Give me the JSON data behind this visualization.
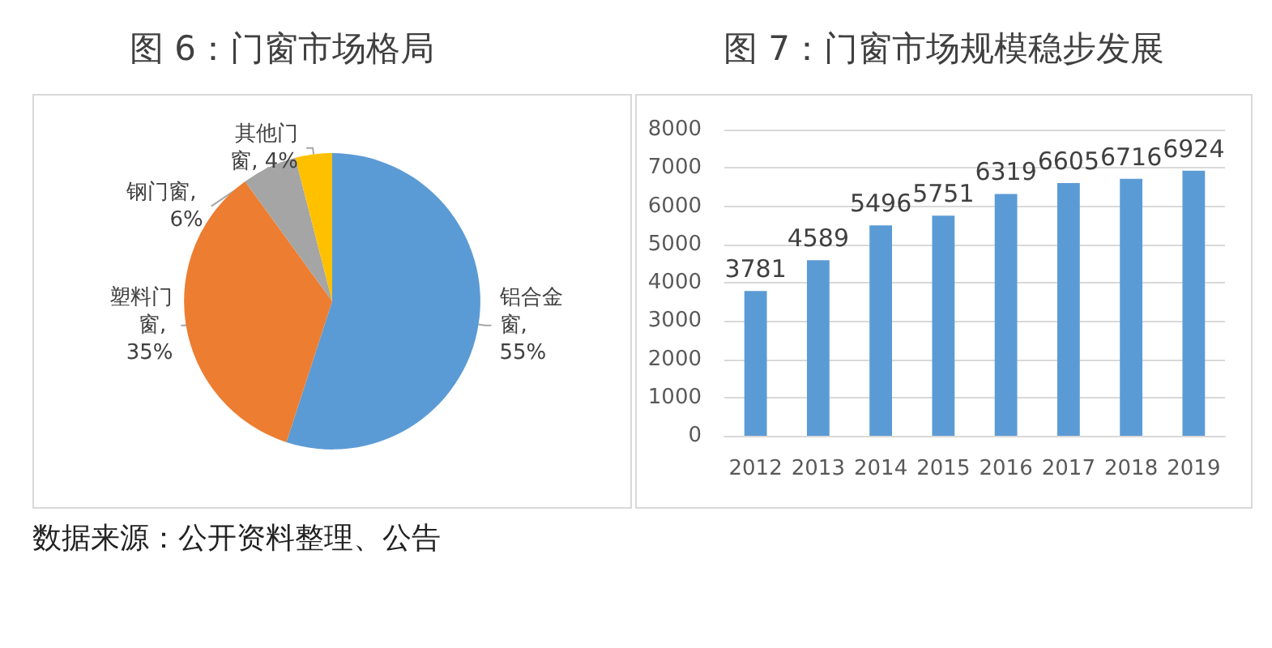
{
  "chart_data": [
    {
      "type": "pie",
      "title": "图 6：门窗市场格局",
      "categories": [
        "铝合金窗",
        "塑料门窗",
        "钢门窗",
        "其他门窗"
      ],
      "values": [
        55,
        35,
        6,
        4
      ],
      "colors": [
        "#5b9bd5",
        "#ed7d31",
        "#a5a5a5",
        "#ffc000"
      ],
      "value_labels": [
        ", 55%",
        ", 35%",
        ", 6%",
        ", 4%"
      ],
      "annotations": [
        "数据来源：公开资料整理、公告"
      ]
    },
    {
      "type": "bar",
      "title": "图 7：门窗市场规模稳步发展",
      "categories": [
        "2012",
        "2013",
        "2014",
        "2015",
        "2016",
        "2017",
        "2018",
        "2019"
      ],
      "values": [
        3781,
        4589,
        5496,
        5751,
        6319,
        6605,
        6716,
        6924
      ],
      "color": "#5b9bd5",
      "ylim": [
        0,
        8000
      ],
      "yticks": [
        0,
        1000,
        2000,
        3000,
        4000,
        5000,
        6000,
        7000,
        8000
      ],
      "grid": "y",
      "data_labels": true
    }
  ]
}
